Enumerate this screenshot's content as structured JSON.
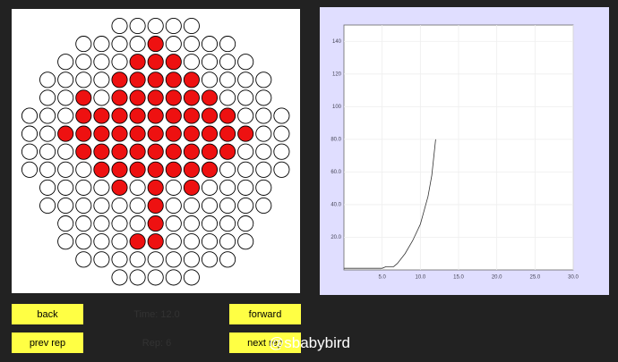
{
  "grid": {
    "cells": [
      [
        null,
        null,
        null,
        null,
        null,
        0,
        0,
        0,
        0,
        0,
        null,
        null,
        null,
        null,
        null
      ],
      [
        null,
        null,
        null,
        0,
        0,
        0,
        0,
        1,
        0,
        0,
        0,
        0,
        null,
        null,
        null
      ],
      [
        null,
        null,
        0,
        0,
        0,
        0,
        1,
        1,
        1,
        0,
        0,
        0,
        0,
        null,
        null
      ],
      [
        null,
        0,
        0,
        0,
        0,
        1,
        1,
        1,
        1,
        1,
        0,
        0,
        0,
        0,
        null
      ],
      [
        null,
        0,
        0,
        1,
        0,
        1,
        1,
        1,
        1,
        1,
        1,
        0,
        0,
        0,
        null
      ],
      [
        0,
        0,
        0,
        1,
        1,
        1,
        1,
        1,
        1,
        1,
        1,
        1,
        0,
        0,
        0
      ],
      [
        0,
        0,
        1,
        1,
        1,
        1,
        1,
        1,
        1,
        1,
        1,
        1,
        1,
        0,
        0
      ],
      [
        0,
        0,
        0,
        1,
        1,
        1,
        1,
        1,
        1,
        1,
        1,
        1,
        0,
        0,
        0
      ],
      [
        0,
        0,
        0,
        0,
        1,
        1,
        1,
        1,
        1,
        1,
        1,
        0,
        0,
        0,
        0
      ],
      [
        null,
        0,
        0,
        0,
        0,
        1,
        0,
        1,
        0,
        1,
        0,
        0,
        0,
        0,
        null
      ],
      [
        null,
        0,
        0,
        0,
        0,
        0,
        0,
        1,
        0,
        0,
        0,
        0,
        0,
        0,
        null
      ],
      [
        null,
        null,
        0,
        0,
        0,
        0,
        0,
        1,
        0,
        0,
        0,
        0,
        0,
        null,
        null
      ],
      [
        null,
        null,
        0,
        0,
        0,
        0,
        1,
        1,
        0,
        0,
        0,
        0,
        0,
        null,
        null
      ],
      [
        null,
        null,
        null,
        0,
        0,
        0,
        0,
        0,
        0,
        0,
        0,
        0,
        null,
        null,
        null
      ],
      [
        null,
        null,
        null,
        null,
        null,
        0,
        0,
        0,
        0,
        0,
        null,
        null,
        null,
        null,
        null
      ]
    ]
  },
  "chart_data": {
    "type": "line",
    "x": [
      0,
      5,
      5.5,
      6.5,
      7,
      8,
      9,
      10,
      11,
      11.5,
      12
    ],
    "series": [
      {
        "color": "#333333",
        "values": [
          1,
          1,
          2,
          2,
          4,
          10,
          18,
          28,
          45,
          58,
          80
        ]
      }
    ],
    "xlim": [
      0,
      30
    ],
    "ylim": [
      0,
      150
    ],
    "xticks": [
      {
        "value": 5,
        "label": "5.0"
      },
      {
        "value": 10,
        "label": "10.0"
      },
      {
        "value": 15,
        "label": "15.0"
      },
      {
        "value": 20,
        "label": "20.0"
      },
      {
        "value": 25,
        "label": "25.0"
      },
      {
        "value": 30,
        "label": "30.0"
      }
    ],
    "yticks": [
      {
        "value": 20,
        "label": "20.0"
      },
      {
        "value": 40,
        "label": "40.0"
      },
      {
        "value": 60,
        "label": "60.0"
      },
      {
        "value": 80,
        "label": "80.0"
      },
      {
        "value": 100,
        "label": "100"
      },
      {
        "value": 120,
        "label": "120"
      },
      {
        "value": 140,
        "label": "140"
      }
    ],
    "grid": true
  },
  "controls": {
    "back": "back",
    "forward": "forward",
    "prev_rep": "prev rep",
    "next_rep": "next rep",
    "time": "Time: 12.0",
    "rep": "Rep: 6"
  },
  "watermark": "@sbabybird"
}
